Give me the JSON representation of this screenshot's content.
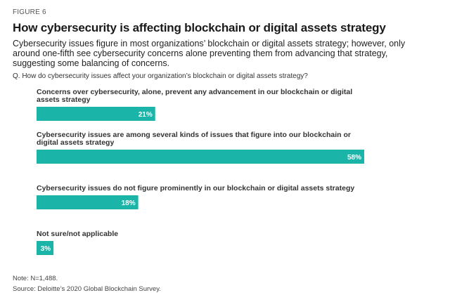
{
  "figure_label": "FIGURE 6",
  "title": "How cybersecurity is affecting blockchain or digital assets strategy",
  "subtitle": "Cybersecurity issues figure in most organizations’ blockchain or digital assets strategy; however, only around one-fifth see cybersecurity concerns alone preventing them from advancing that strategy, suggesting some balancing of concerns.",
  "question": "Q. How do cybersecurity issues affect your organization’s blockchain or digital assets strategy?",
  "note": "Note: N=1,488.",
  "source": "Source: Deloitte’s 2020 Global Blockchain Survey.",
  "colors": {
    "bar": "#1ab5a8"
  },
  "chart_data": {
    "type": "bar",
    "orientation": "horizontal",
    "title": "How cybersecurity is affecting blockchain or digital assets strategy",
    "xlabel": "",
    "ylabel": "",
    "xlim": [
      0,
      58
    ],
    "categories": [
      [
        "Concerns over cybersecurity, alone, prevent any advancement in our blockchain or digital",
        "assets strategy"
      ],
      [
        "Cybersecurity issues are among several kinds of issues that figure into our blockchain or",
        "digital assets strategy"
      ],
      [
        "Cybersecurity issues do not figure prominently in our blockchain or digital assets strategy"
      ],
      [
        "Not sure/not applicable"
      ]
    ],
    "values": [
      21,
      58,
      18,
      3
    ],
    "value_labels": [
      "21%",
      "58%",
      "18%",
      "3%"
    ]
  }
}
